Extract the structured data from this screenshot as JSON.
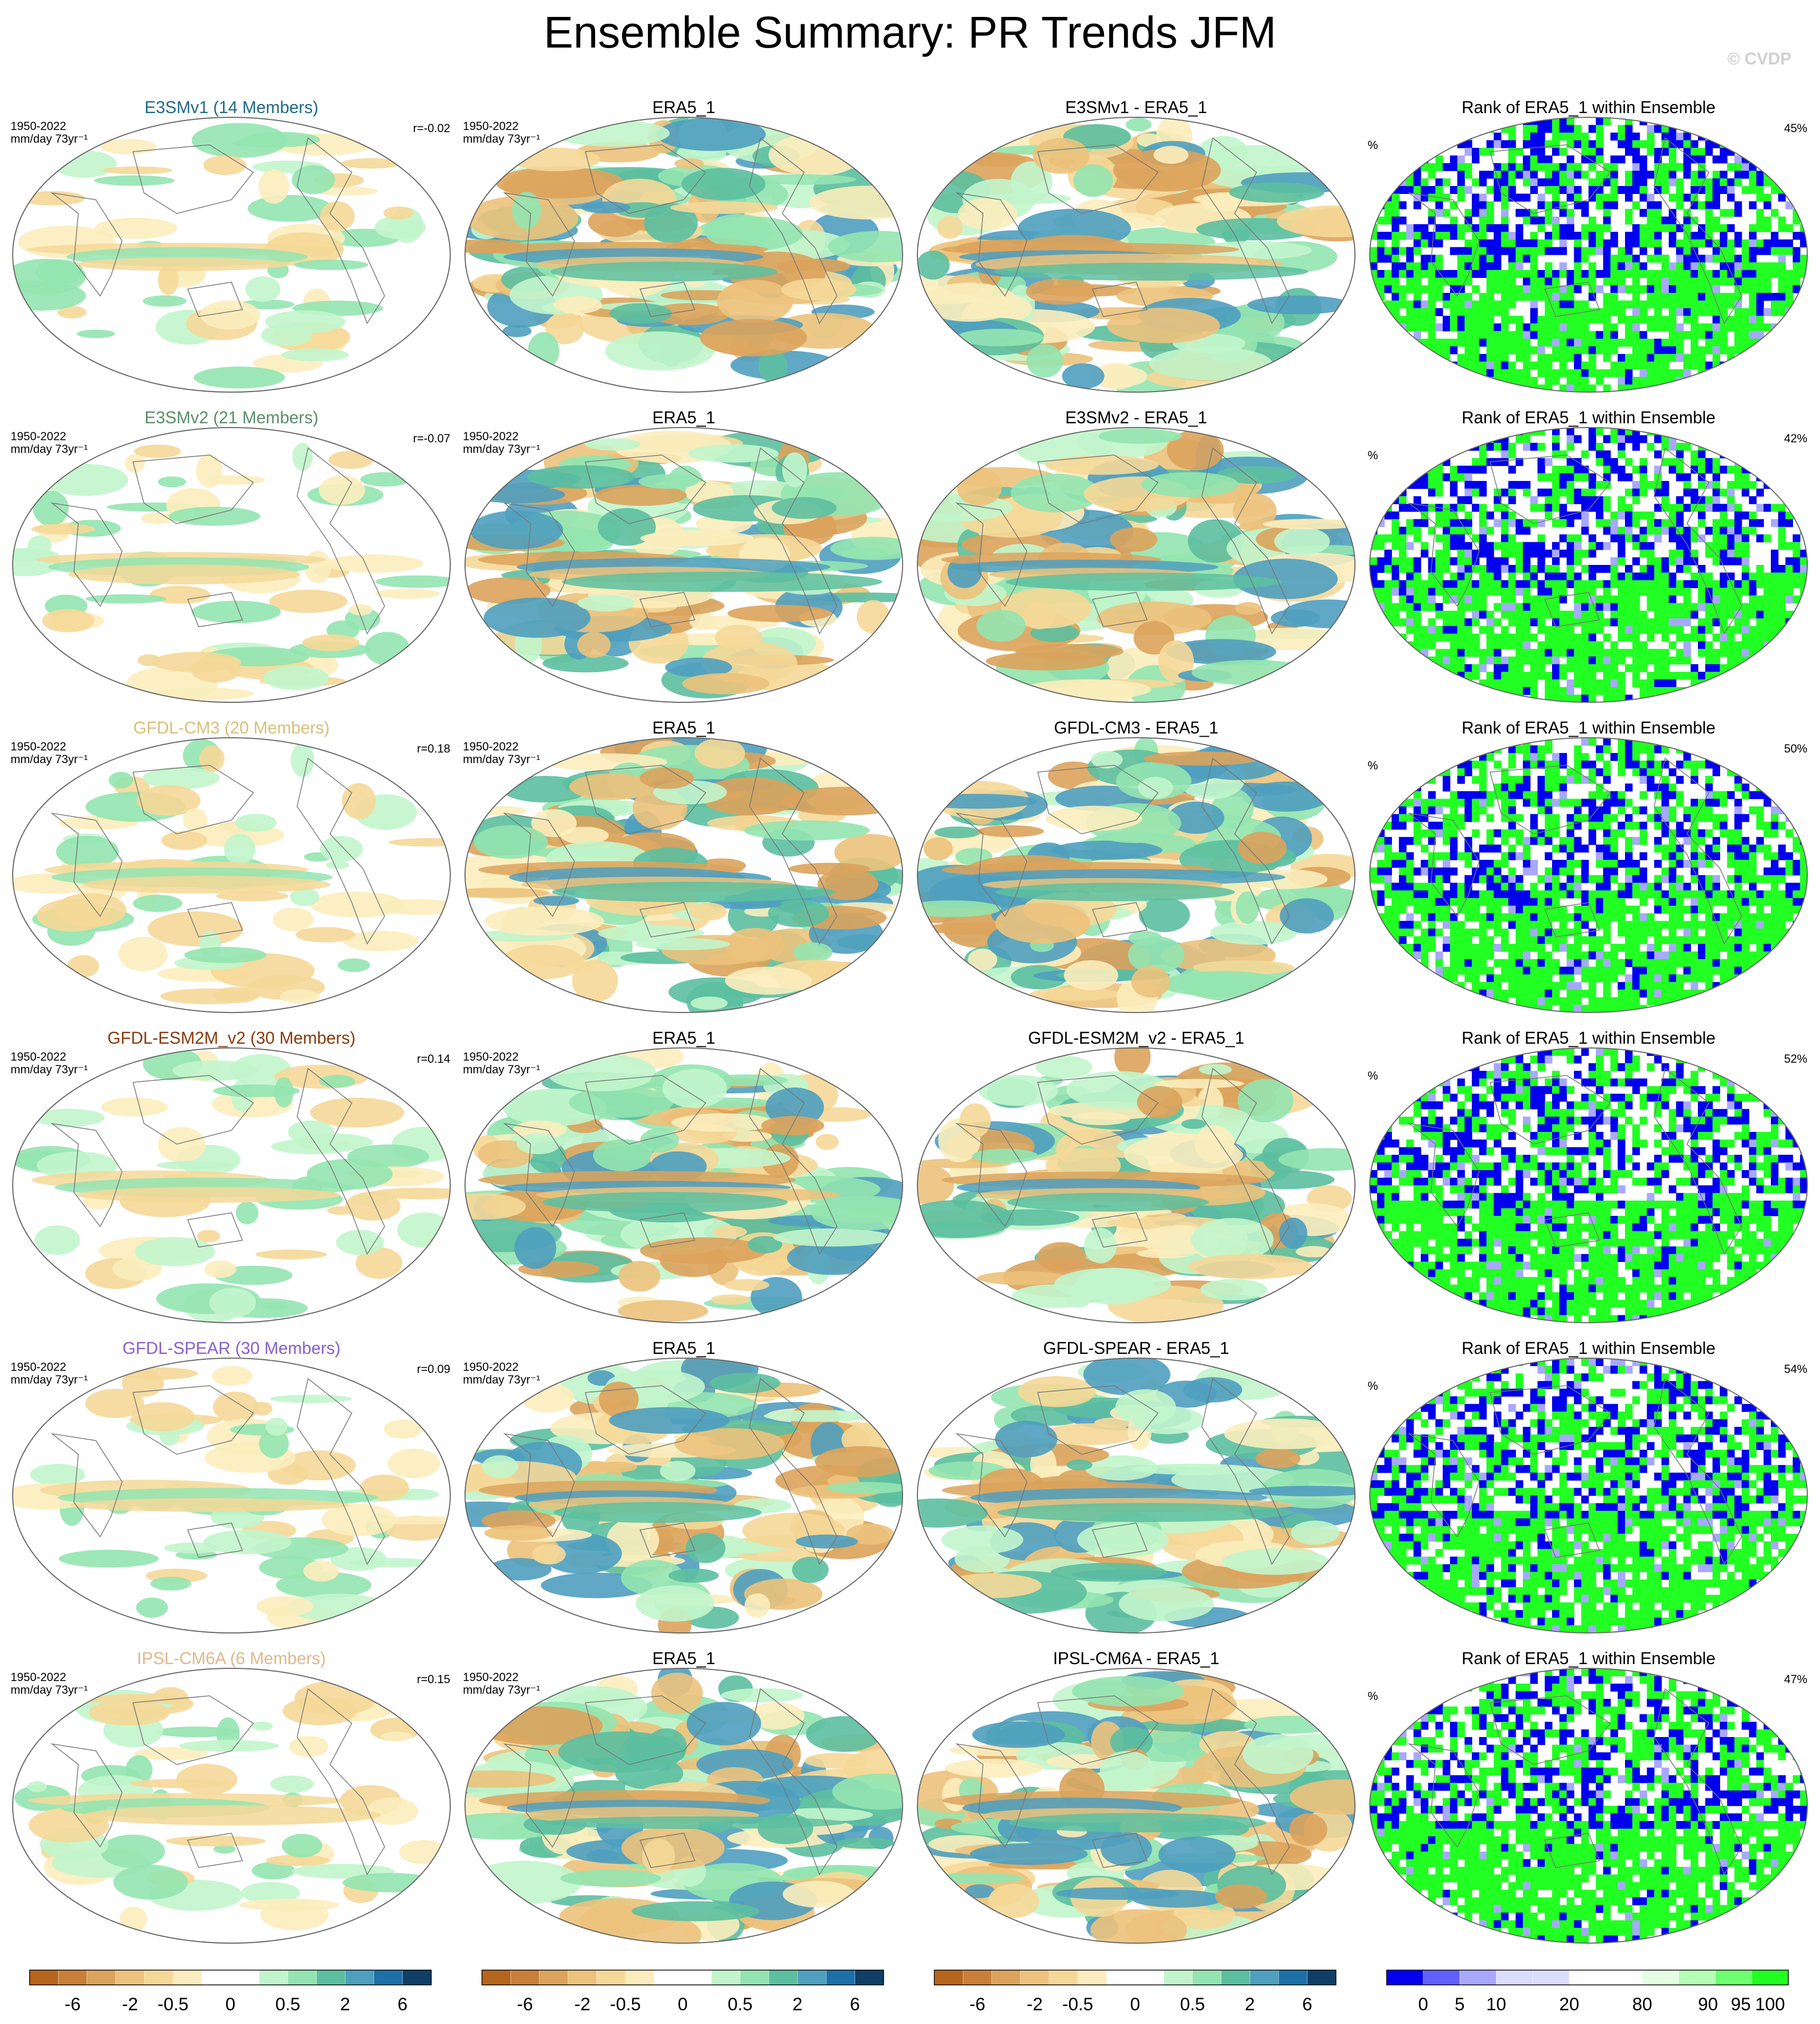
{
  "figure": {
    "title": "Ensemble Summary: PR Trends JFM",
    "watermark": "© CVDP",
    "watermark_color": "#d0d0d0"
  },
  "panel_info": {
    "period": "1950-2022",
    "units": "mm/day 73yr⁻¹",
    "rank_units": "%"
  },
  "rows": [
    {
      "model": "E3SMv1 (14 Members)",
      "model_color": "#1f6a8a",
      "r": "r=-0.02",
      "obs": "ERA5_1",
      "diff": "E3SMv1 - ERA5_1",
      "rank_title": "Rank of ERA5_1 within Ensemble",
      "rank_pct": "45%"
    },
    {
      "model": "E3SMv2 (21 Members)",
      "model_color": "#5a8f6a",
      "r": "r=-0.07",
      "obs": "ERA5_1",
      "diff": "E3SMv2 - ERA5_1",
      "rank_title": "Rank of ERA5_1 within Ensemble",
      "rank_pct": "42%"
    },
    {
      "model": "GFDL-CM3 (20 Members)",
      "model_color": "#d8c07a",
      "r": "r=0.18",
      "obs": "ERA5_1",
      "diff": "GFDL-CM3 - ERA5_1",
      "rank_title": "Rank of ERA5_1 within Ensemble",
      "rank_pct": "50%"
    },
    {
      "model": "GFDL-ESM2M_v2 (30 Members)",
      "model_color": "#8b3a0e",
      "r": "r=0.14",
      "obs": "ERA5_1",
      "diff": "GFDL-ESM2M_v2 - ERA5_1",
      "rank_title": "Rank of ERA5_1 within Ensemble",
      "rank_pct": "52%"
    },
    {
      "model": "GFDL-SPEAR (30 Members)",
      "model_color": "#8a5fd0",
      "r": "r=0.09",
      "obs": "ERA5_1",
      "diff": "GFDL-SPEAR - ERA5_1",
      "rank_title": "Rank of ERA5_1 within Ensemble",
      "rank_pct": "54%"
    },
    {
      "model": "IPSL-CM6A (6 Members)",
      "model_color": "#e0b88a",
      "r": "r=0.15",
      "obs": "ERA5_1",
      "diff": "IPSL-CM6A - ERA5_1",
      "rank_title": "Rank of ERA5_1 within Ensemble",
      "rank_pct": "47%"
    }
  ],
  "colorbars": {
    "trend": {
      "colors": [
        "#b5651d",
        "#c97f3a",
        "#dca35c",
        "#ecc27c",
        "#f5d898",
        "#fbedbd",
        "#ffffff",
        "#ffffff",
        "#c2f5cc",
        "#93e4b0",
        "#5cbfa0",
        "#4f9fbf",
        "#1d6fa8",
        "#0f3f66"
      ],
      "labels": [
        "-6",
        "-2",
        "-0.5",
        "0",
        "0.5",
        "2",
        "6"
      ]
    },
    "rank": {
      "colors": [
        "#0000ee",
        "#6060ff",
        "#a8a8ff",
        "#dcdcff",
        "#dcdcff",
        "#ffffff",
        "#ffffff",
        "#e4ffe4",
        "#b4ffb4",
        "#70ff70",
        "#22ff22"
      ],
      "labels": [
        "0",
        "5",
        "10",
        "20",
        "80",
        "90",
        "95",
        "100"
      ]
    }
  },
  "chart_data": {
    "type": "heatmap",
    "title": "Ensemble Summary: PR Trends JFM",
    "layout": "6 rows x 4 columns of global precipitation-trend maps",
    "series": [
      {
        "name": "E3SMv1 (14 Members)",
        "pattern_correlation": -0.02,
        "rank_percent": 45
      },
      {
        "name": "E3SMv2 (21 Members)",
        "pattern_correlation": -0.07,
        "rank_percent": 42
      },
      {
        "name": "GFDL-CM3 (20 Members)",
        "pattern_correlation": 0.18,
        "rank_percent": 50
      },
      {
        "name": "GFDL-ESM2M_v2 (30 Members)",
        "pattern_correlation": 0.14,
        "rank_percent": 52
      },
      {
        "name": "GFDL-SPEAR (30 Members)",
        "pattern_correlation": 0.09,
        "rank_percent": 54
      },
      {
        "name": "IPSL-CM6A (6 Members)",
        "pattern_correlation": 0.15,
        "rank_percent": 47
      }
    ],
    "trend_colorbar_ticks": [
      "-6",
      "-2",
      "-0.5",
      "0",
      "0.5",
      "2",
      "6"
    ],
    "rank_colorbar_ticks": [
      "0",
      "5",
      "10",
      "20",
      "80",
      "90",
      "95",
      "100"
    ]
  }
}
